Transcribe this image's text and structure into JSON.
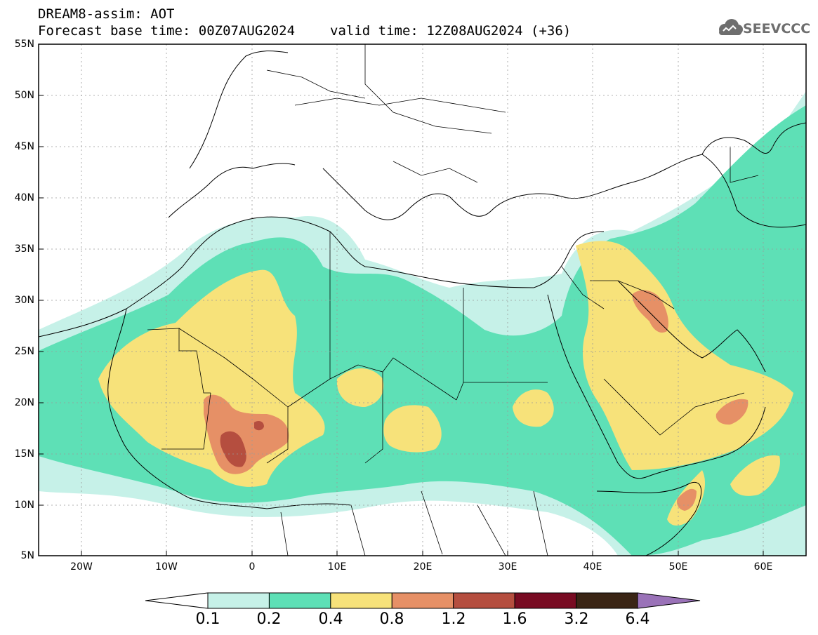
{
  "header": {
    "title": "DREAM8-assim: AOT",
    "base_time_label": "Forecast base time: 00Z07AUG2024",
    "valid_time_label": "valid time: 12Z08AUG2024 (+36)"
  },
  "logo": {
    "text": "SEEVCCC",
    "icon": "cloud-logo-icon"
  },
  "map": {
    "lat_labels": [
      "55N",
      "50N",
      "45N",
      "40N",
      "35N",
      "30N",
      "25N",
      "20N",
      "15N",
      "10N",
      "5N"
    ],
    "lon_labels": [
      "20W",
      "10W",
      "0",
      "10E",
      "20E",
      "30E",
      "40E",
      "50E",
      "60E"
    ],
    "lat_range": [
      5,
      55
    ],
    "lon_range": [
      -25,
      65
    ],
    "grid": "dotted"
  },
  "legend": {
    "levels": [
      "0.1",
      "0.2",
      "0.4",
      "0.8",
      "1.2",
      "1.6",
      "3.2",
      "6.4"
    ],
    "colors": [
      "#c6f1e8",
      "#5ee0b6",
      "#f7e27a",
      "#e69066",
      "#b54e3f",
      "#780b22",
      "#3a2515",
      "#9a72b8"
    ]
  }
}
